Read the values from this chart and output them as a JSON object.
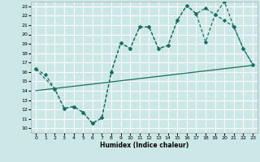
{
  "xlabel": "Humidex (Indice chaleur)",
  "bg_color": "#cce8e6",
  "grid_color": "#ffffff",
  "line_color": "#1a6e60",
  "xlim": [
    -0.5,
    23.5
  ],
  "ylim": [
    9.5,
    23.5
  ],
  "xticks": [
    0,
    1,
    2,
    3,
    4,
    5,
    6,
    7,
    8,
    9,
    10,
    11,
    12,
    13,
    14,
    15,
    16,
    17,
    18,
    19,
    20,
    21,
    22,
    23
  ],
  "yticks": [
    10,
    11,
    12,
    13,
    14,
    15,
    16,
    17,
    18,
    19,
    20,
    21,
    22,
    23
  ],
  "line1_x": [
    0,
    1,
    2,
    3,
    4,
    5,
    6,
    7,
    8,
    9,
    10,
    11,
    12,
    13,
    14,
    15,
    16,
    17,
    18,
    19,
    20,
    21,
    22,
    23
  ],
  "line1_y": [
    16.3,
    15.7,
    14.2,
    12.1,
    12.3,
    11.7,
    10.5,
    11.1,
    16.0,
    19.1,
    18.5,
    20.8,
    20.8,
    18.5,
    18.8,
    21.5,
    23.1,
    22.2,
    19.2,
    22.1,
    23.5,
    20.8,
    18.5,
    16.8
  ],
  "line2_x": [
    0,
    2,
    3,
    4,
    5,
    6,
    7,
    8,
    9,
    10,
    11,
    12,
    13,
    14,
    15,
    16,
    17,
    18,
    19,
    20,
    21,
    22,
    23
  ],
  "line2_y": [
    16.3,
    14.2,
    12.1,
    12.3,
    11.7,
    10.5,
    11.1,
    16.0,
    19.1,
    18.5,
    20.8,
    20.8,
    18.5,
    18.8,
    21.5,
    23.1,
    22.2,
    22.8,
    22.1,
    21.5,
    20.8,
    18.5,
    16.8
  ],
  "line3_x": [
    0,
    23
  ],
  "line3_y": [
    14.0,
    16.7
  ]
}
